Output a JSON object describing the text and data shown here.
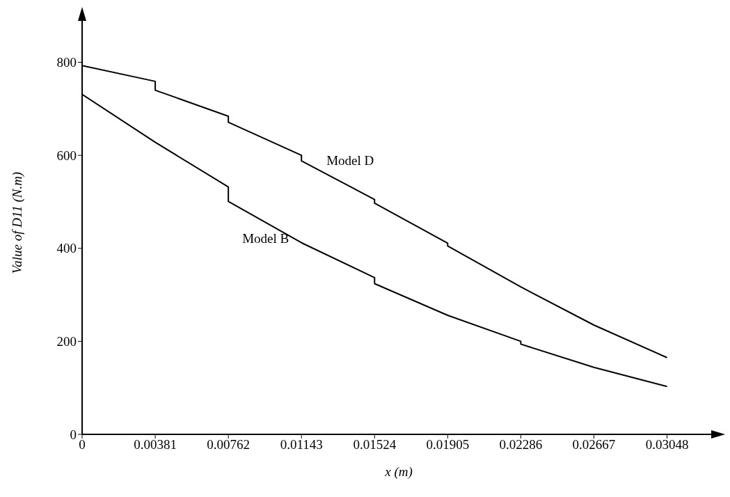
{
  "chart_data": {
    "type": "line",
    "xlabel": "x (m)",
    "ylabel": "Value of D11 (N.m)",
    "xlim": [
      0,
      0.033
    ],
    "xticks": [
      0,
      0.00381,
      0.00762,
      0.01143,
      0.01524,
      0.01905,
      0.02286,
      0.02667,
      0.03048
    ],
    "ylim": [
      0,
      910
    ],
    "yticks": [
      0,
      200,
      400,
      600,
      800
    ],
    "marker": "none",
    "line_style": "solid",
    "series": [
      {
        "name": "Model D",
        "color": "#000000",
        "x": [
          0,
          0.00381,
          0.00381,
          0.00762,
          0.00762,
          0.01143,
          0.01143,
          0.01524,
          0.01524,
          0.01905,
          0.01905,
          0.02286,
          0.02667,
          0.03048
        ],
        "values": [
          793,
          759,
          740,
          684,
          671,
          600,
          588,
          505,
          497,
          411,
          405,
          317,
          235,
          165
        ]
      },
      {
        "name": "Model B",
        "color": "#000000",
        "x": [
          0,
          0.00381,
          0.00762,
          0.00762,
          0.01143,
          0.01524,
          0.01524,
          0.01905,
          0.02286,
          0.02286,
          0.02667,
          0.03048
        ],
        "values": [
          731,
          628,
          532,
          501,
          412,
          337,
          324,
          256,
          200,
          194,
          144,
          103
        ]
      }
    ]
  }
}
